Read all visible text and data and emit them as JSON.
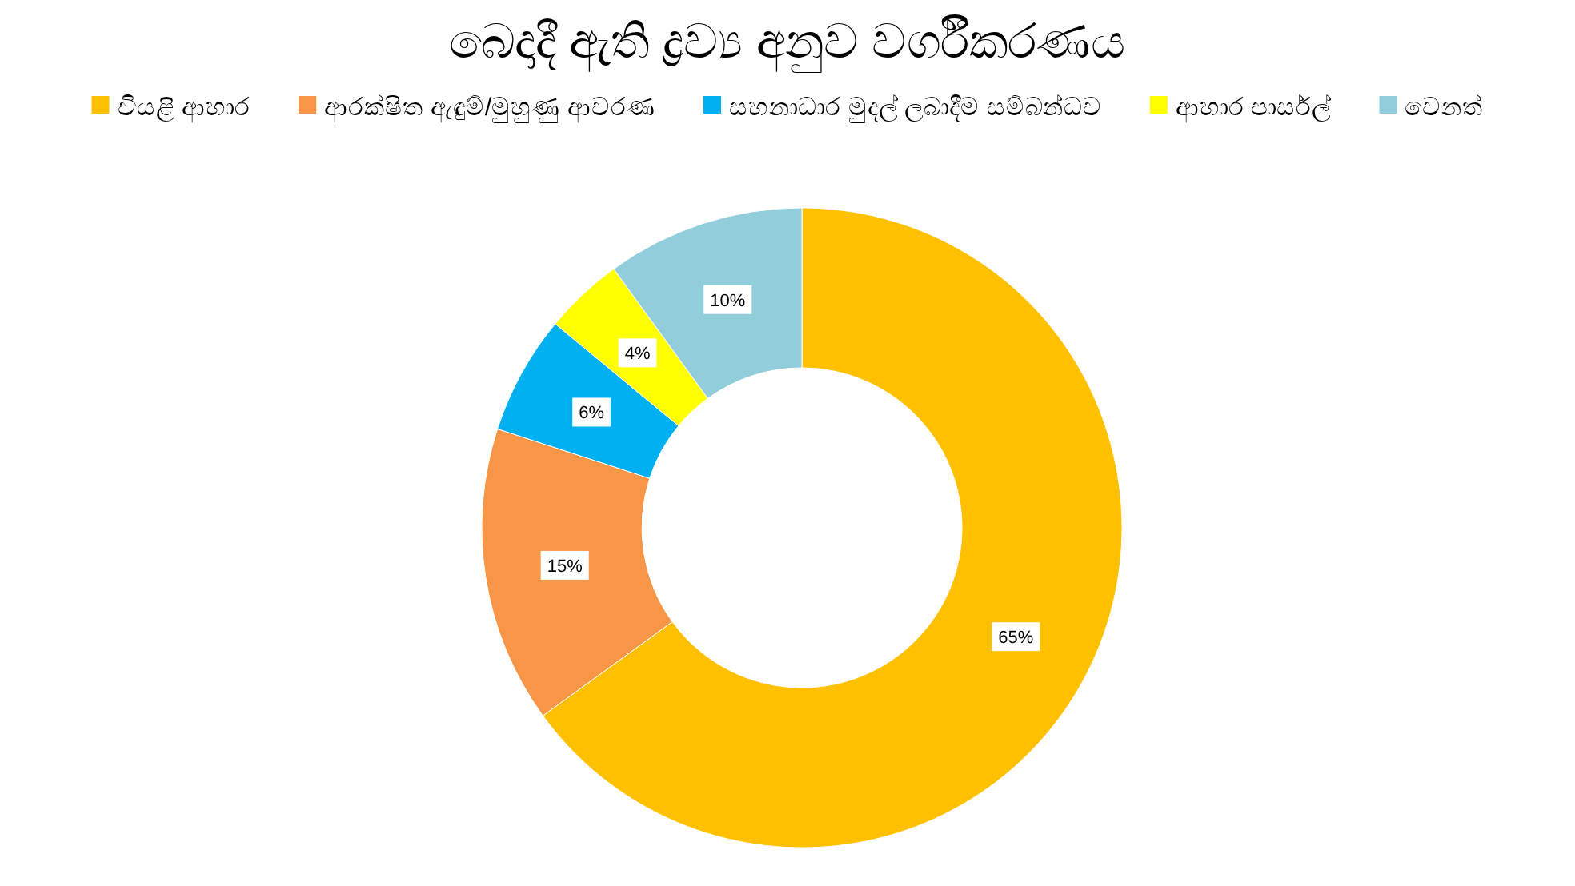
{
  "chart_data": {
    "type": "donut",
    "title": "බෙදාදී ඇති ද්‍රව්‍ය අනුව වර්ගීකරණය",
    "categories": [
      "වියළි ආහාර",
      "ආරක්ෂිත ඇඳුම්/මුහුණු ආවරණ",
      "සහනාධාර මුදල් ලබාදීම සම්බන්ධව",
      "ආහාර පාර්සල්",
      "වෙනත්"
    ],
    "values": [
      65,
      15,
      6,
      4,
      10
    ],
    "colors": [
      "#ffc000",
      "#f79646",
      "#00b0f0",
      "#ffff00",
      "#92cddc"
    ],
    "value_labels": [
      "65%",
      "15%",
      "6%",
      "4%",
      "10%"
    ],
    "legend": "top"
  }
}
